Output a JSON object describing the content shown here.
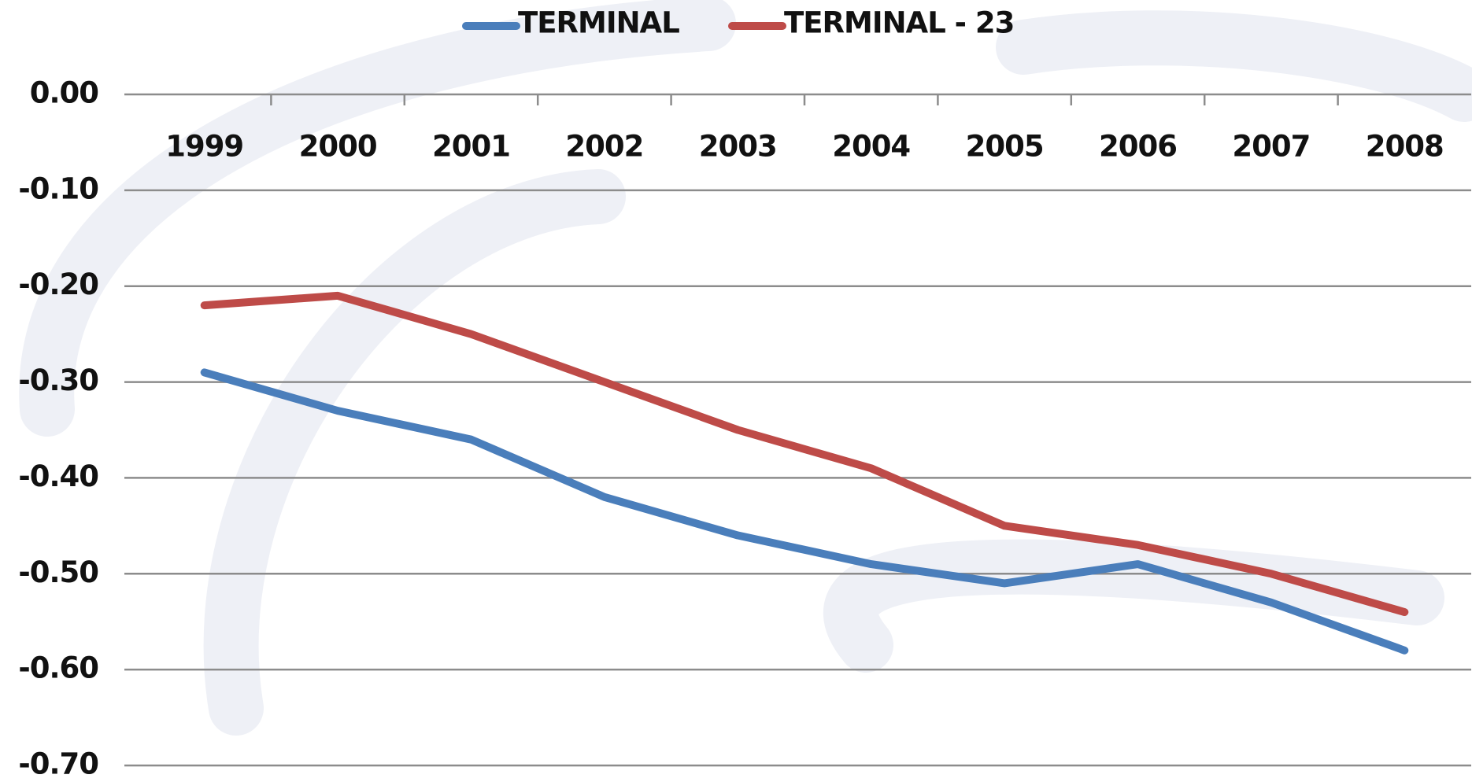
{
  "chart_data": {
    "type": "line",
    "categories": [
      "1999",
      "2000",
      "2001",
      "2002",
      "2003",
      "2004",
      "2005",
      "2006",
      "2007",
      "2008"
    ],
    "series": [
      {
        "name": "TERMINAL",
        "color": "#4a7ebb",
        "values": [
          -0.29,
          -0.33,
          -0.36,
          -0.42,
          -0.46,
          -0.49,
          -0.51,
          -0.49,
          -0.53,
          -0.58
        ]
      },
      {
        "name": "TERMINAL - 23",
        "color": "#be4b48",
        "values": [
          -0.22,
          -0.21,
          -0.25,
          -0.3,
          -0.35,
          -0.39,
          -0.45,
          -0.47,
          -0.5,
          -0.54
        ]
      }
    ],
    "ylim": [
      -0.7,
      0
    ],
    "yticks": [
      {
        "value": 0,
        "label": "0.00"
      },
      {
        "value": -0.1,
        "label": "-0.10"
      },
      {
        "value": -0.2,
        "label": "-0.20"
      },
      {
        "value": -0.3,
        "label": "-0.30"
      },
      {
        "value": -0.4,
        "label": "-0.40"
      },
      {
        "value": -0.5,
        "label": "-0.50"
      },
      {
        "value": -0.6,
        "label": "-0.60"
      },
      {
        "value": -0.7,
        "label": "-0.70"
      }
    ],
    "grid": true,
    "legend": "top"
  }
}
